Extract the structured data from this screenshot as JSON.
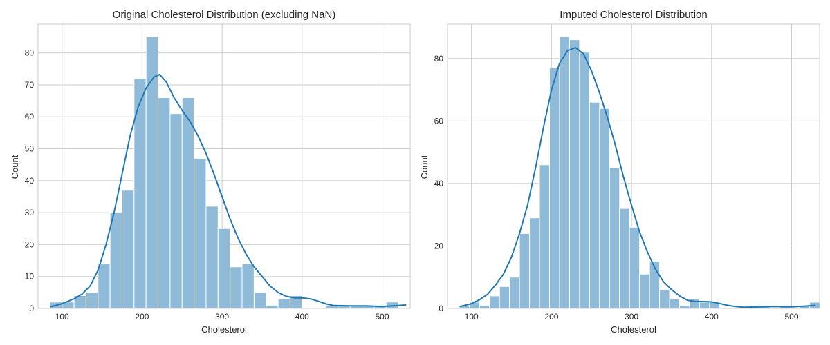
{
  "colors": {
    "bar_fill": "#8fbbd9",
    "line": "#1f77b4",
    "grid": "#cccccc",
    "text": "#262626"
  },
  "chart_data": [
    {
      "type": "bar",
      "title": "Original Cholesterol Distribution (excluding NaN)",
      "xlabel": "Cholesterol",
      "ylabel": "Count",
      "xlim": [
        70,
        535
      ],
      "ylim": [
        0,
        89
      ],
      "xticks": [
        100,
        200,
        300,
        400,
        500
      ],
      "yticks": [
        0,
        10,
        20,
        30,
        40,
        50,
        60,
        70,
        80
      ],
      "grid": true,
      "bin_start": 85,
      "bin_width": 15,
      "counts": [
        2,
        2,
        4,
        5,
        14,
        30,
        37,
        72,
        85,
        66,
        61,
        66,
        47,
        32,
        25,
        13,
        14,
        5,
        1,
        3,
        4,
        0,
        0,
        1,
        1,
        1,
        1,
        1,
        2
      ],
      "kde": {
        "name": "KDE",
        "x": [
          85,
          100,
          115,
          125,
          135,
          145,
          155,
          165,
          175,
          185,
          195,
          205,
          215,
          222,
          230,
          240,
          250,
          260,
          270,
          280,
          290,
          300,
          310,
          320,
          330,
          340,
          350,
          360,
          370,
          380,
          390,
          400,
          410,
          420,
          430,
          440,
          460,
          480,
          500,
          520,
          530
        ],
        "y": [
          0.5,
          1.5,
          3,
          4.5,
          7,
          12,
          20,
          30,
          42,
          54,
          63,
          69,
          72.5,
          73.2,
          71,
          66,
          62,
          58.5,
          54,
          48.5,
          42,
          35,
          28,
          22,
          17,
          13,
          10,
          7,
          5,
          3.8,
          3.3,
          3.3,
          3,
          2.3,
          1.4,
          0.9,
          0.8,
          0.8,
          0.6,
          0.9,
          1.1
        ]
      }
    },
    {
      "type": "bar",
      "title": "Imputed Cholesterol Distribution",
      "xlabel": "Cholesterol",
      "ylabel": "Count",
      "xlim": [
        70,
        535
      ],
      "ylim": [
        0,
        91
      ],
      "xticks": [
        100,
        200,
        300,
        400,
        500
      ],
      "yticks": [
        0,
        20,
        40,
        60,
        80
      ],
      "grid": true,
      "bin_start": 85,
      "bin_width": 12.5,
      "counts": [
        1,
        2,
        1,
        4,
        7,
        10,
        24,
        29,
        46,
        77,
        87,
        86,
        82,
        66,
        64,
        45,
        32,
        26,
        11,
        15,
        6,
        3,
        1,
        3,
        2,
        2,
        0,
        0,
        0,
        1,
        1,
        0,
        1,
        0,
        1,
        2
      ],
      "kde": {
        "name": "KDE",
        "x": [
          85,
          100,
          110,
          120,
          130,
          140,
          150,
          160,
          170,
          180,
          190,
          200,
          210,
          220,
          230,
          240,
          250,
          260,
          270,
          280,
          290,
          300,
          310,
          320,
          330,
          340,
          350,
          360,
          370,
          380,
          390,
          400,
          410,
          420,
          430,
          440,
          460,
          480,
          500,
          520,
          530
        ],
        "y": [
          0.6,
          1.5,
          2.8,
          4.5,
          7.5,
          11,
          16.5,
          24,
          33,
          45,
          58,
          70,
          78.5,
          82.5,
          83.5,
          81.5,
          76,
          69,
          61,
          52,
          42,
          33,
          24.5,
          18,
          12.5,
          8.5,
          6,
          4,
          2.6,
          2.2,
          2.2,
          2.1,
          1.6,
          1,
          0.6,
          0.4,
          0.5,
          0.6,
          0.5,
          0.8,
          1
        ]
      }
    }
  ]
}
